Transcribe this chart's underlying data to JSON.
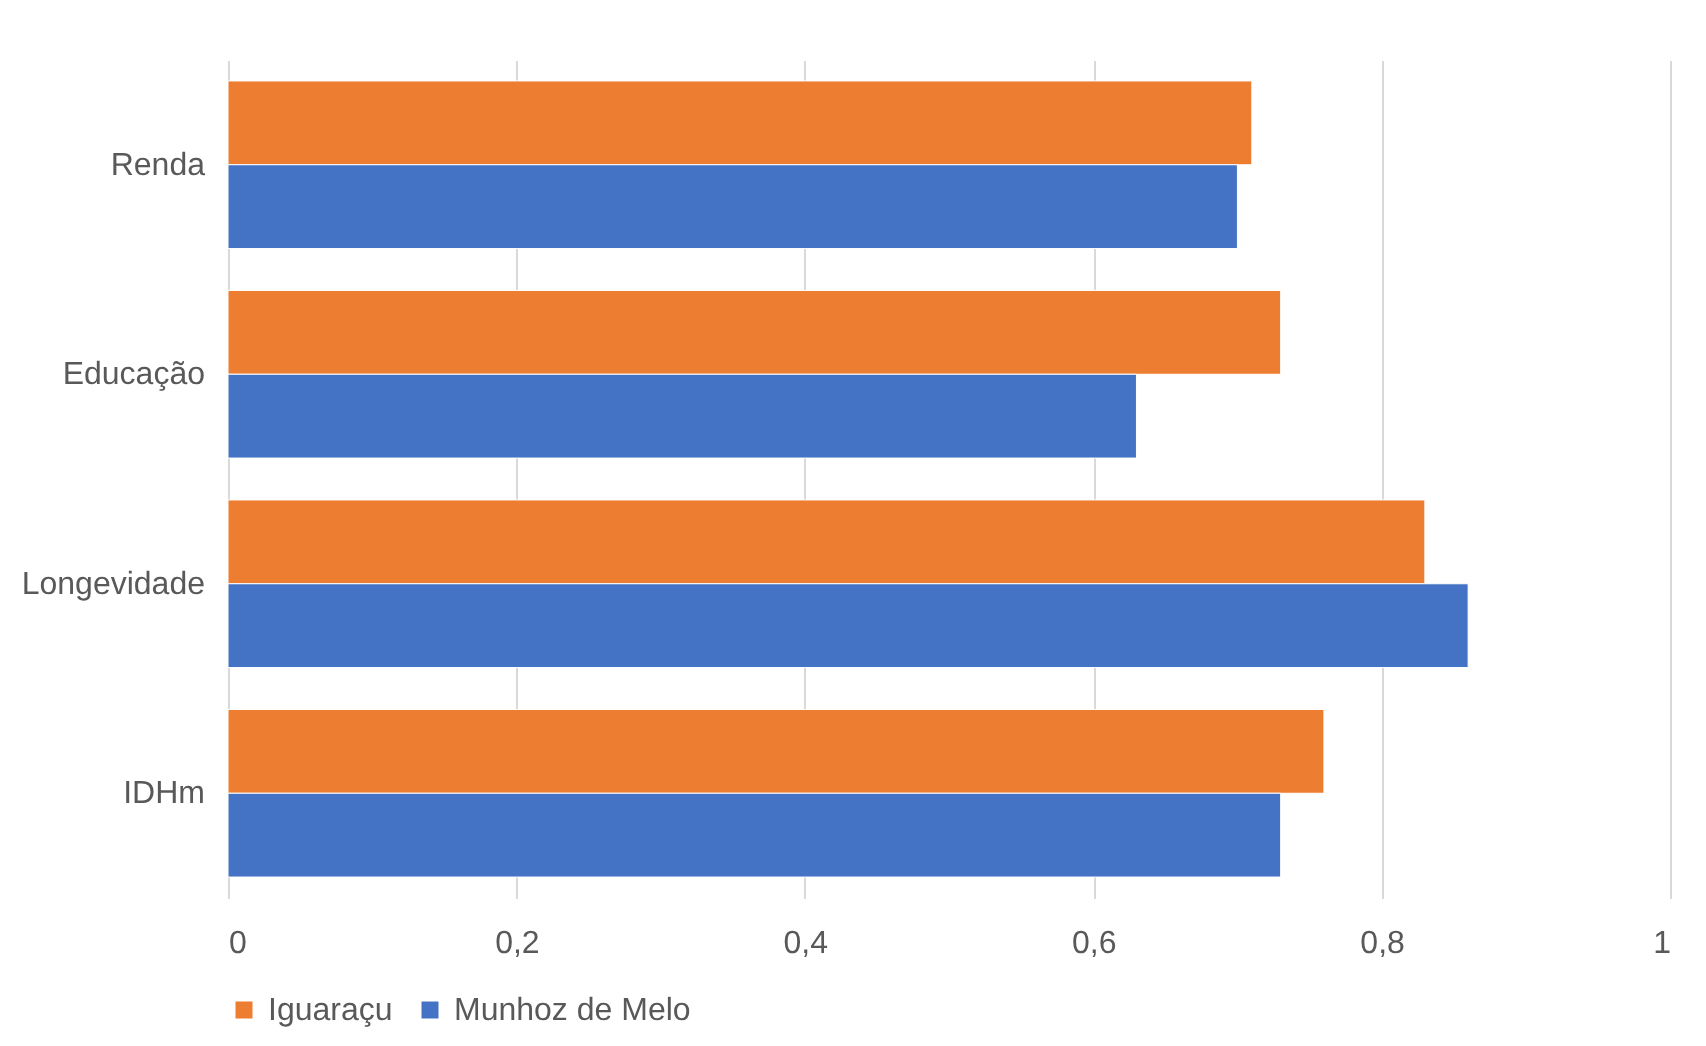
{
  "chart_data": {
    "type": "bar",
    "orientation": "horizontal",
    "categories": [
      "Renda",
      "Educação",
      "Longevidade",
      "IDHm"
    ],
    "series": [
      {
        "name": "Iguaraçu",
        "color": "#ed7d31",
        "values": [
          0.71,
          0.73,
          0.83,
          0.76
        ]
      },
      {
        "name": "Munhoz de Melo",
        "color": "#4472c4",
        "values": [
          0.7,
          0.63,
          0.86,
          0.73
        ]
      }
    ],
    "xlim": [
      0,
      1
    ],
    "xticks": [
      0,
      {
        "value": 0.2,
        "label": "0,2"
      },
      {
        "value": 0.4,
        "label": "0,4"
      },
      {
        "value": 0.6,
        "label": "0,6"
      },
      {
        "value": 0.8,
        "label": "0,8"
      },
      1
    ],
    "grid": "x",
    "legend": "bottom"
  }
}
